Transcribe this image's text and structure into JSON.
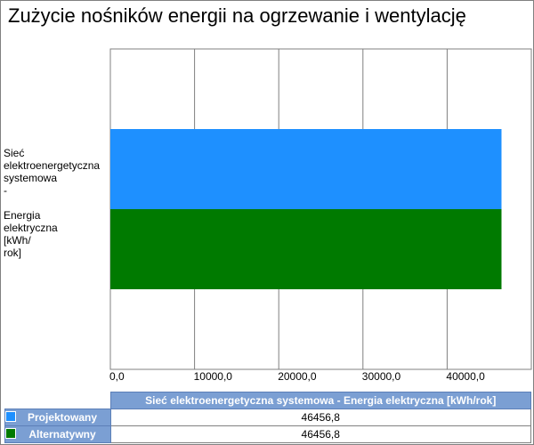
{
  "title": "Zużycie nośników energii na ogrzewanie i wentylację",
  "chart_data": {
    "type": "bar",
    "orientation": "horizontal",
    "title": "Zużycie nośników energii na ogrzewanie i wentylację",
    "categories": [
      "Sieć\nelektroenergetyczna\nsystemowa\n-\n\nEnergia\nelektryczna\n[kWh/\nrok]"
    ],
    "series": [
      {
        "name": "Projektowany",
        "values": [
          46456.8
        ],
        "color": "#1e90ff"
      },
      {
        "name": "Alternatywny",
        "values": [
          46456.8
        ],
        "color": "#007a00"
      }
    ],
    "xlim": [
      0,
      50000
    ],
    "xticks": [
      0,
      10000,
      20000,
      30000,
      40000
    ],
    "xtick_labels": [
      "0,0",
      "10000,0",
      "20000,0",
      "30000,0",
      "40000,0"
    ],
    "grid": "vertical",
    "legend": "data-table-below"
  },
  "table": {
    "column_header": "Sieć elektroenergetyczna systemowa - Energia elektryczna [kWh/rok]",
    "rows": [
      {
        "label": "Projektowany",
        "value": "46456,8",
        "color": "#1e90ff"
      },
      {
        "label": "Alternatywny",
        "value": "46456,8",
        "color": "#007a00"
      }
    ]
  }
}
